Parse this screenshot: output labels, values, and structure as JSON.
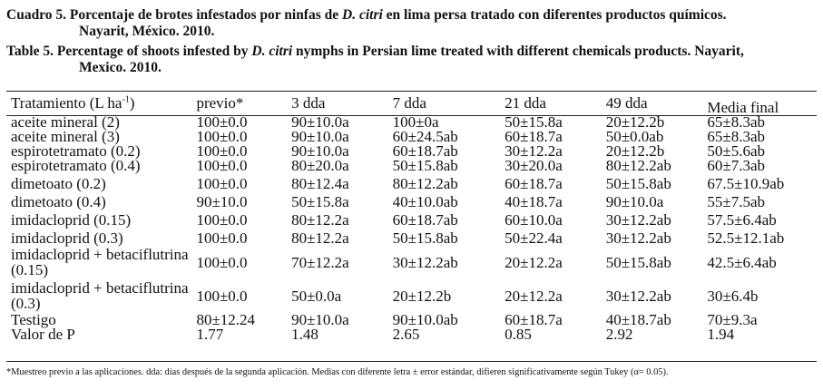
{
  "caption_es": {
    "lead": "Cuadro 5. Porcentaje de brotes infestados por ninfas de ",
    "species": "D. citri",
    "tail": " en lima persa tratado con diferentes productos químicos.",
    "cont": "Nayarit, México. 2010."
  },
  "caption_en": {
    "lead": "Table 5. Percentage of shoots infested by ",
    "species": "D. citri",
    "tail": " nymphs in Persian lime treated with different chemicals products. Nayarit,",
    "cont": "Mexico. 2010."
  },
  "table": {
    "headers": [
      "Tratamiento (L ha",
      "previo*",
      "3 dda",
      "7 dda",
      "21 dda",
      "49 dda",
      "Media final"
    ],
    "header_sup": "-1",
    "header_close": ")",
    "rows": [
      {
        "cells": [
          "aceite mineral (2)",
          "100±0.0",
          "90±10.0a",
          "100±0a",
          "50±15.8a",
          "20±12.2b",
          "65±8.3ab"
        ]
      },
      {
        "cells": [
          "aceite mineral (3)",
          "100±0.0",
          "90±10.0a",
          "60±24.5ab",
          "60±18.7a",
          "50±0.0ab",
          "65±8.3ab"
        ]
      },
      {
        "cells": [
          "espirotetramato (0.2)",
          "100±0.0",
          "90±10.0a",
          "60±18.7ab",
          "30±12.2a",
          "20±12.2b",
          "50±5.6ab"
        ]
      },
      {
        "cells": [
          "espirotetramato (0.4)",
          "100±0.0",
          "80±20.0a",
          "50±15.8ab",
          "30±20.0a",
          "80±12.2ab",
          "60±7.3ab"
        ]
      },
      {
        "cells": [
          "dimetoato (0.2)",
          "100±0.0",
          "80±12.4a",
          "80±12.2ab",
          "60±18.7a",
          "50±15.8ab",
          "67.5±10.9ab"
        ]
      },
      {
        "cells": [
          "dimetoato (0.4)",
          "90±10.0",
          "50±15.8a",
          "40±10.0ab",
          "40±18.7a",
          "90±10.0a",
          "55±7.5ab"
        ]
      },
      {
        "cells": [
          "imidacloprid (0.15)",
          "100±0.0",
          "80±12.2a",
          "60±18.7ab",
          "60±10.0a",
          "30±12.2ab",
          "57.5±6.4ab"
        ]
      },
      {
        "cells": [
          "imidacloprid (0.3)",
          "100±0.0",
          "80±12.2a",
          "50±15.8ab",
          "50±22.4a",
          "30±12.2ab",
          "52.5±12.1ab"
        ]
      },
      {
        "cells": [
          "imidacloprid + betaciflutrina (0.15)",
          "100±0.0",
          "70±12.2a",
          "30±12.2ab",
          "20±12.2a",
          "50±15.8ab",
          "42.5±6.4ab"
        ]
      },
      {
        "cells": [
          "imidacloprid + betaciflutrina (0.3)",
          "100±0.0",
          "50±0.0a",
          "20±12.2b",
          "20±12.2a",
          "30±12.2ab",
          "30±6.4b"
        ]
      },
      {
        "cells": [
          "Testigo",
          "80±12.24",
          "90±10.0a",
          "90±10.0ab",
          "60±18.7a",
          "40±18.7ab",
          "70±9.3a"
        ]
      },
      {
        "cells": [
          "Valor de P",
          "1.77",
          "1.48",
          "2.65",
          "0.85",
          "2.92",
          "1.94"
        ]
      }
    ]
  },
  "footnote": "*Muestreo previo a las aplicaciones. dda: días después de la segunda aplicación. Medias con diferente letra ± error estándar, difieren significativamente según Tukey (α= 0.05)."
}
